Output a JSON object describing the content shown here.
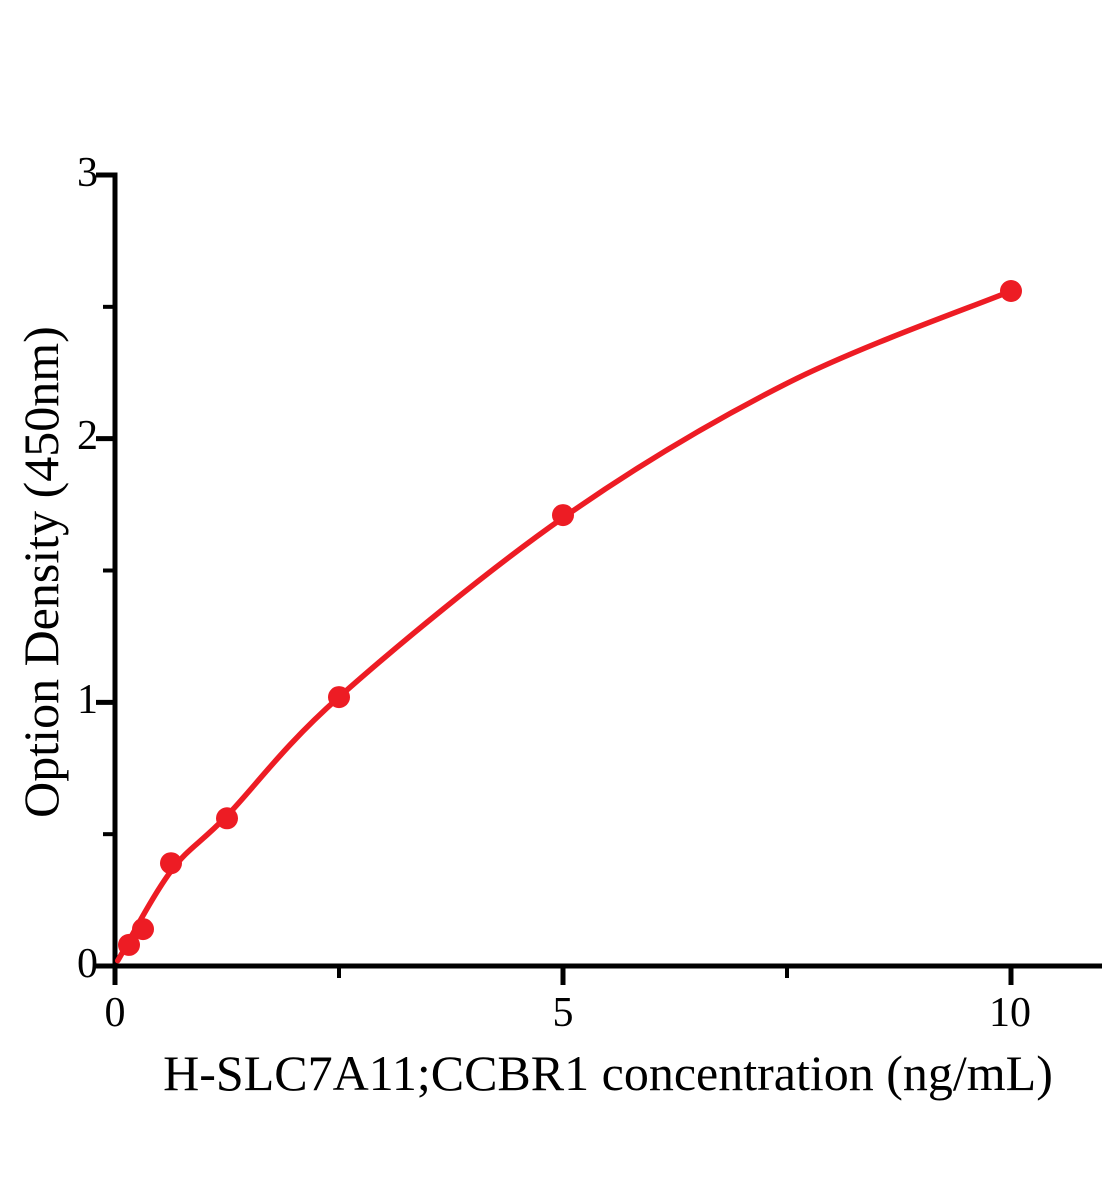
{
  "chart_data": {
    "type": "scatter",
    "title": "",
    "xlabel": "H-SLC7A11;CCBR1 concentration（ng/mL）",
    "ylabel": "Option Density（450nm）",
    "x": [
      0.156,
      0.3125,
      0.625,
      1.25,
      2.5,
      5,
      10
    ],
    "y": [
      0.08,
      0.14,
      0.39,
      0.56,
      1.02,
      1.71,
      2.56
    ],
    "fit_curve": {
      "type": "smooth",
      "points": [
        [
          0.03,
          0.02
        ],
        [
          0.625,
          0.36
        ],
        [
          1.25,
          0.57
        ],
        [
          2.5,
          1.02
        ],
        [
          5,
          1.7
        ],
        [
          7.5,
          2.21
        ],
        [
          10,
          2.56
        ]
      ]
    },
    "xlim": [
      0,
      11
    ],
    "ylim": [
      0,
      3
    ],
    "xticks": {
      "major": [
        0,
        5,
        10
      ],
      "minor": [
        2.5,
        7.5
      ],
      "labels": [
        "0",
        "5",
        "10"
      ]
    },
    "yticks": {
      "major": [
        0,
        1,
        2,
        3
      ],
      "minor": [
        0.5,
        1.5,
        2.5
      ],
      "labels": [
        "0",
        "1",
        "2",
        "3"
      ]
    },
    "grid": false,
    "legend": false,
    "marker_color": "#ed1c24",
    "line_color": "#ed1c24",
    "axis_color": "#000000",
    "background_color": "#ffffff"
  }
}
